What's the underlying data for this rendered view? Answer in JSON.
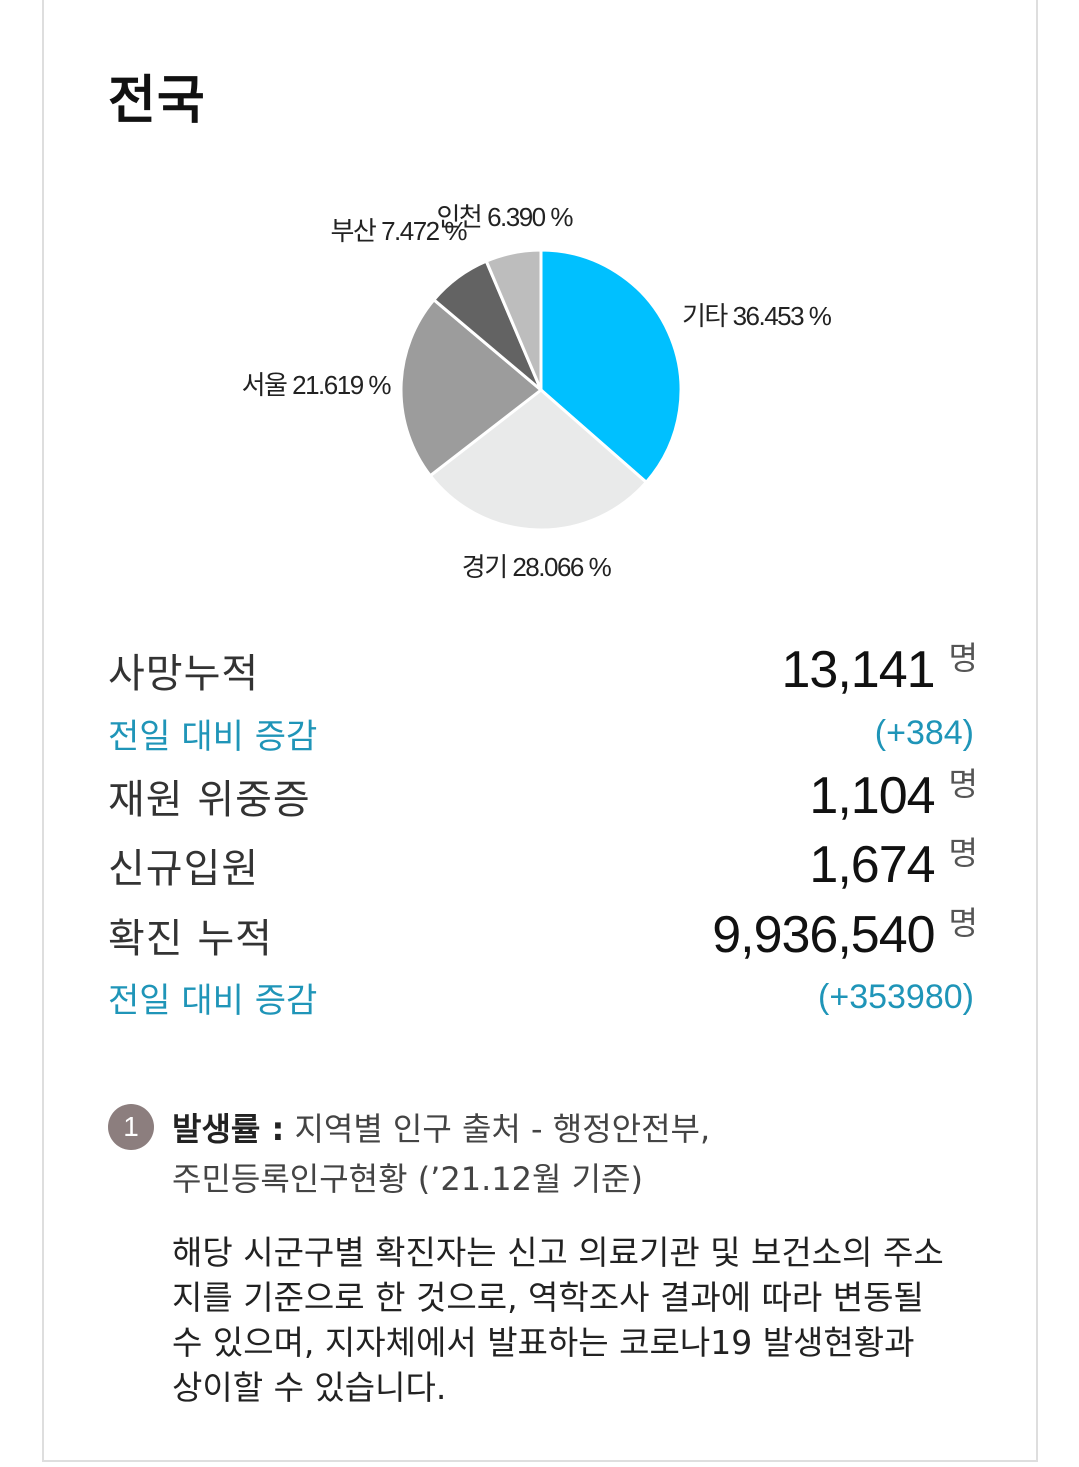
{
  "title": "전국",
  "chart_data": {
    "type": "pie",
    "slices": [
      {
        "label": "기타",
        "value": 36.453,
        "text": "기타 36.453 %",
        "color": "#00c0ff"
      },
      {
        "label": "경기",
        "value": 28.066,
        "text": "경기 28.066 %",
        "color": "#e9eaea"
      },
      {
        "label": "서울",
        "value": 21.619,
        "text": "서울 21.619 %",
        "color": "#9c9c9c"
      },
      {
        "label": "부산",
        "value": 7.472,
        "text": "부산 7.472 %",
        "color": "#636363"
      },
      {
        "label": "인천",
        "value": 6.39,
        "text": "인천 6.390 %",
        "color": "#bdbdbd"
      }
    ]
  },
  "stats": {
    "deaths": {
      "label": "사망누적",
      "value": "13,141",
      "unit": "명"
    },
    "deaths_change": {
      "label": "전일 대비 증감",
      "value": "(+384)"
    },
    "critical": {
      "label": "재원 위중증",
      "value": "1,104",
      "unit": "명"
    },
    "admissions": {
      "label": "신규입원",
      "value": "1,674",
      "unit": "명"
    },
    "confirmed": {
      "label": "확진 누적",
      "value": "9,936,540",
      "unit": "명"
    },
    "confirmed_change": {
      "label": "전일 대비 증감",
      "value": "(+353980)"
    }
  },
  "note": {
    "badge": "1",
    "title": "발생률 :",
    "line1": " 지역별 인구 출처 - 행정안전부,",
    "line2": "주민등록인구현황 (’21.12월 기준)",
    "description": "해당 시군구별 확진자는 신고 의료기관 및 보건소의 주소지를 기준으로 한 것으로, 역학조사 결과에 따라 변동될 수 있으며, 지자체에서 발표하는 코로나19 발생현황과 상이할 수 있습니다."
  }
}
